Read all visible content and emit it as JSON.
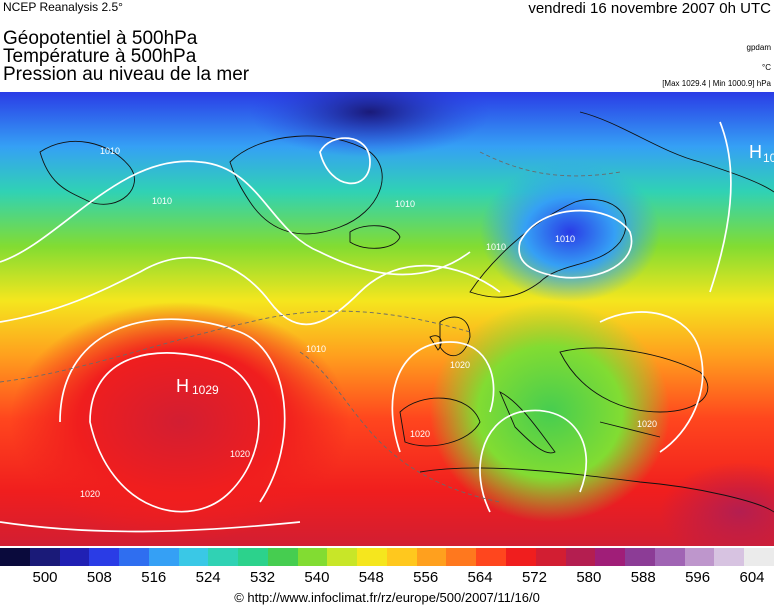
{
  "header": {
    "source": "NCEP Reanalysis 2.5°",
    "date": "vendredi 16 novembre 2007 0h UTC"
  },
  "titles": {
    "line1": "Géopotentiel à 500hPa",
    "line2": "Température à 500hPa",
    "line3": "Pression au niveau de la mer"
  },
  "units": {
    "geopotential": "gpdam",
    "temperature": "°C",
    "pressure_range": "[Max 1029.4 | Min 1000.9] hPa"
  },
  "colorbar": {
    "ticks": [
      "500",
      "508",
      "516",
      "524",
      "532",
      "540",
      "548",
      "556",
      "564",
      "572",
      "580",
      "588",
      "596",
      "604"
    ],
    "colors": [
      "#0a0a3c",
      "#1a1a78",
      "#2020b4",
      "#2a3ce6",
      "#2f6ef0",
      "#35a0f5",
      "#3ac8e6",
      "#30d2b4",
      "#2cd28c",
      "#46cd50",
      "#82dc32",
      "#c8e628",
      "#f5e61e",
      "#ffc81e",
      "#ffa01e",
      "#ff781e",
      "#ff461e",
      "#f01e1e",
      "#d21e32",
      "#b41e50",
      "#a01e78",
      "#8c3c96",
      "#a064b4",
      "#be96cc",
      "#d7c3e1",
      "#ebebeb"
    ]
  },
  "map": {
    "highs": [
      {
        "label": "H",
        "value": "1029"
      },
      {
        "label": "H",
        "value": "10"
      }
    ],
    "contour_labels": [
      "1010",
      "1010",
      "1010",
      "1020",
      "1020",
      "1020",
      "1020",
      "1020",
      "1010",
      "1010",
      "1010"
    ]
  },
  "footer": {
    "url": "© http://www.infoclimat.fr/rz/europe/500/2007/11/16/0"
  }
}
